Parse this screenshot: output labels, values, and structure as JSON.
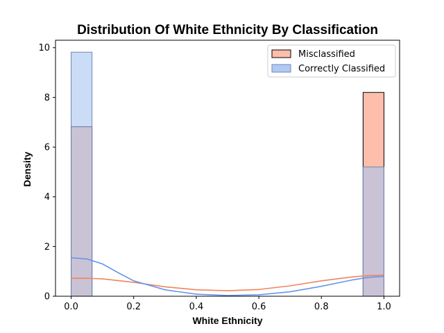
{
  "chart_data": {
    "type": "bar",
    "title": "Distribution Of White Ethnicity By Classification",
    "xlabel": "White Ethnicity",
    "ylabel": "Density",
    "xlim": [
      -0.05,
      1.05
    ],
    "ylim": [
      0,
      10.3
    ],
    "xticks": [
      "0.0",
      "0.2",
      "0.4",
      "0.6",
      "0.8",
      "1.0"
    ],
    "yticks": [
      "0",
      "2",
      "4",
      "6",
      "8",
      "10"
    ],
    "bin_width": 0.0667,
    "legend_position": "top-right",
    "series": [
      {
        "name": "Misclassified",
        "color": "#fdb49c",
        "kde_color": "#f0845c",
        "bins": [
          {
            "x0": 0.0,
            "x1": 0.0667,
            "value": 6.82
          },
          {
            "x0": 0.9333,
            "x1": 1.0,
            "value": 8.2
          }
        ],
        "kde": [
          [
            0.0,
            0.72
          ],
          [
            0.05,
            0.72
          ],
          [
            0.1,
            0.7
          ],
          [
            0.2,
            0.56
          ],
          [
            0.3,
            0.38
          ],
          [
            0.4,
            0.26
          ],
          [
            0.5,
            0.22
          ],
          [
            0.6,
            0.27
          ],
          [
            0.7,
            0.42
          ],
          [
            0.8,
            0.62
          ],
          [
            0.9,
            0.78
          ],
          [
            0.95,
            0.83
          ],
          [
            1.0,
            0.85
          ]
        ]
      },
      {
        "name": "Correctly Classified",
        "color": "#a8c4f2",
        "kde_color": "#6495ed",
        "bins": [
          {
            "x0": 0.0,
            "x1": 0.0667,
            "value": 9.82
          },
          {
            "x0": 0.9333,
            "x1": 1.0,
            "value": 5.2
          }
        ],
        "kde": [
          [
            0.0,
            1.55
          ],
          [
            0.05,
            1.5
          ],
          [
            0.1,
            1.3
          ],
          [
            0.15,
            0.95
          ],
          [
            0.2,
            0.62
          ],
          [
            0.3,
            0.26
          ],
          [
            0.4,
            0.08
          ],
          [
            0.5,
            0.03
          ],
          [
            0.6,
            0.06
          ],
          [
            0.7,
            0.18
          ],
          [
            0.8,
            0.4
          ],
          [
            0.9,
            0.66
          ],
          [
            0.95,
            0.76
          ],
          [
            1.0,
            0.8
          ]
        ]
      }
    ]
  }
}
